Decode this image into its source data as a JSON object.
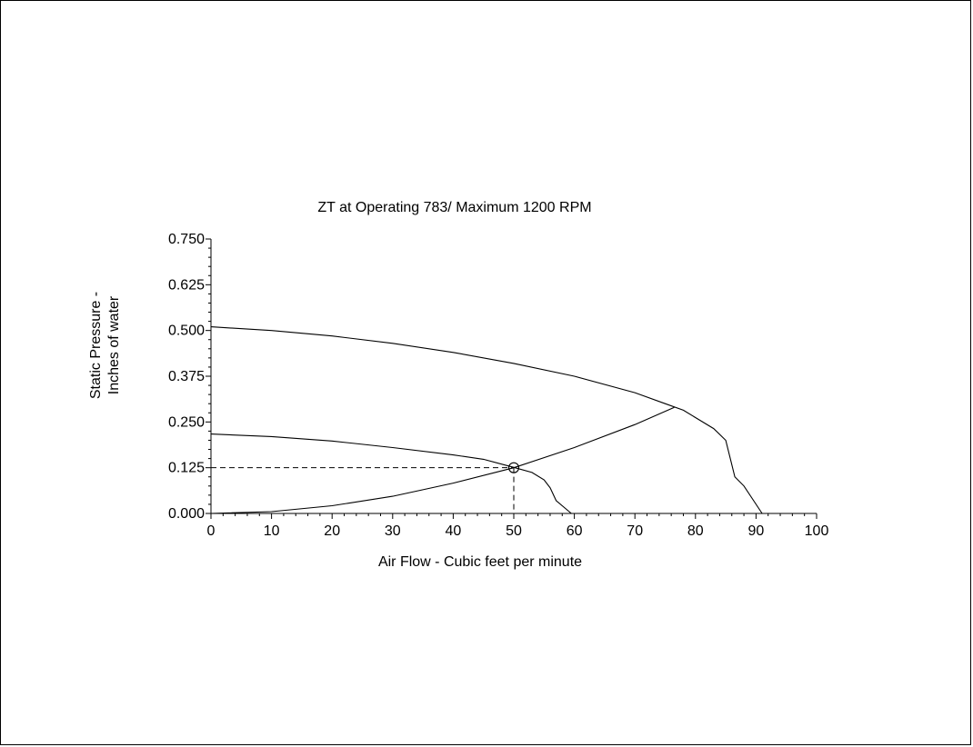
{
  "chart_data": {
    "type": "line",
    "title": "ZT at Operating 783/ Maximum 1200 RPM",
    "xlabel": "Air Flow - Cubic feet per minute",
    "ylabel_line1": "Static Pressure -",
    "ylabel_line2": "Inches of water",
    "xlim": [
      0,
      100
    ],
    "ylim": [
      0,
      0.75
    ],
    "xticks": [
      "0",
      "10",
      "20",
      "30",
      "40",
      "50",
      "60",
      "70",
      "80",
      "90",
      "100"
    ],
    "yticks": [
      "0.000",
      "0.125",
      "0.250",
      "0.375",
      "0.500",
      "0.625",
      "0.750"
    ],
    "grid": false,
    "series": [
      {
        "x": [
          0,
          10,
          20,
          30,
          40,
          50,
          60,
          70,
          75,
          78,
          80,
          83,
          85,
          86.5,
          88,
          91
        ],
        "y": [
          0.51,
          0.5,
          0.485,
          0.465,
          0.44,
          0.41,
          0.375,
          0.33,
          0.3,
          0.282,
          0.262,
          0.232,
          0.2,
          0.1,
          0.075,
          0
        ]
      },
      {
        "x": [
          0,
          10,
          20,
          30,
          40,
          45,
          50,
          53,
          55,
          56,
          57,
          59.5
        ],
        "y": [
          0.217,
          0.21,
          0.198,
          0.18,
          0.16,
          0.148,
          0.126,
          0.112,
          0.092,
          0.07,
          0.035,
          0
        ]
      },
      {
        "x": [
          0,
          10,
          20,
          30,
          40,
          50,
          60,
          70,
          76.5
        ],
        "y": [
          0,
          0.005,
          0.021,
          0.047,
          0.083,
          0.125,
          0.18,
          0.243,
          0.29
        ]
      }
    ],
    "operating_point": {
      "x": 50,
      "y": 0.125
    }
  }
}
